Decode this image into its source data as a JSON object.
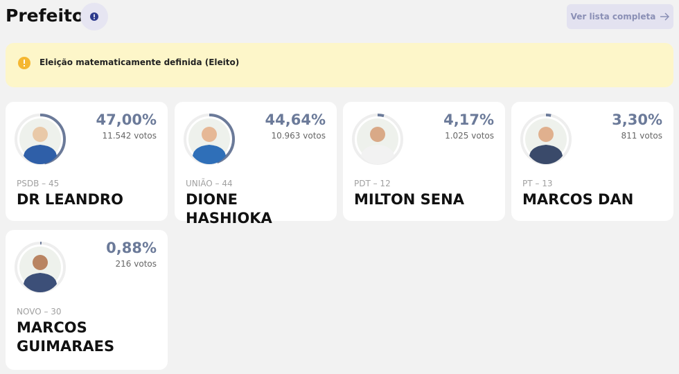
{
  "header": {
    "title": "Prefeito",
    "button": "Ver lista completa"
  },
  "alert": {
    "text": "Eleição matematicamente definida (Eleito)"
  },
  "candidates": [
    {
      "percent": 47.0,
      "percent_label": "47,00%",
      "votes": "11.542 votos",
      "party": "PSDB – 45",
      "name": "DR LEANDRO"
    },
    {
      "percent": 44.64,
      "percent_label": "44,64%",
      "votes": "10.963 votos",
      "party": "UNIÃO – 44",
      "name": "DIONE HASHIOKA"
    },
    {
      "percent": 4.17,
      "percent_label": "4,17%",
      "votes": "1.025 votos",
      "party": "PDT – 12",
      "name": "MILTON SENA"
    },
    {
      "percent": 3.3,
      "percent_label": "3,30%",
      "votes": "811 votos",
      "party": "PT – 13",
      "name": "MARCOS DAN"
    },
    {
      "percent": 0.88,
      "percent_label": "0,88%",
      "votes": "216 votos",
      "party": "NOVO – 30",
      "name": "MARCOS GUIMARAES"
    }
  ]
}
